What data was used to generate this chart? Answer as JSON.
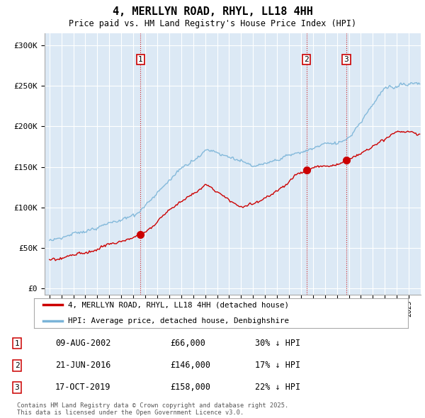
{
  "title": "4, MERLLYN ROAD, RHYL, LL18 4HH",
  "subtitle": "Price paid vs. HM Land Registry's House Price Index (HPI)",
  "hpi_color": "#7ab4d8",
  "price_color": "#cc0000",
  "background_color": "#ffffff",
  "plot_bg_color": "#dce9f5",
  "grid_color": "#ffffff",
  "yticks": [
    0,
    50000,
    100000,
    150000,
    200000,
    250000,
    300000
  ],
  "ytick_labels": [
    "£0",
    "£50K",
    "£100K",
    "£150K",
    "£200K",
    "£250K",
    "£300K"
  ],
  "ylim": [
    -8000,
    315000
  ],
  "sale_prices": [
    66000,
    146000,
    158000
  ],
  "sale_labels": [
    "1",
    "2",
    "3"
  ],
  "sale_year_floats": [
    2002.6,
    2016.47,
    2019.79
  ],
  "sale_table": [
    {
      "label": "1",
      "date": "09-AUG-2002",
      "price": "£66,000",
      "hpi": "30% ↓ HPI"
    },
    {
      "label": "2",
      "date": "21-JUN-2016",
      "price": "£146,000",
      "hpi": "17% ↓ HPI"
    },
    {
      "label": "3",
      "date": "17-OCT-2019",
      "price": "£158,000",
      "hpi": "22% ↓ HPI"
    }
  ],
  "legend_entries": [
    "4, MERLLYN ROAD, RHYL, LL18 4HH (detached house)",
    "HPI: Average price, detached house, Denbighshire"
  ],
  "footer": "Contains HM Land Registry data © Crown copyright and database right 2025.\nThis data is licensed under the Open Government Licence v3.0."
}
